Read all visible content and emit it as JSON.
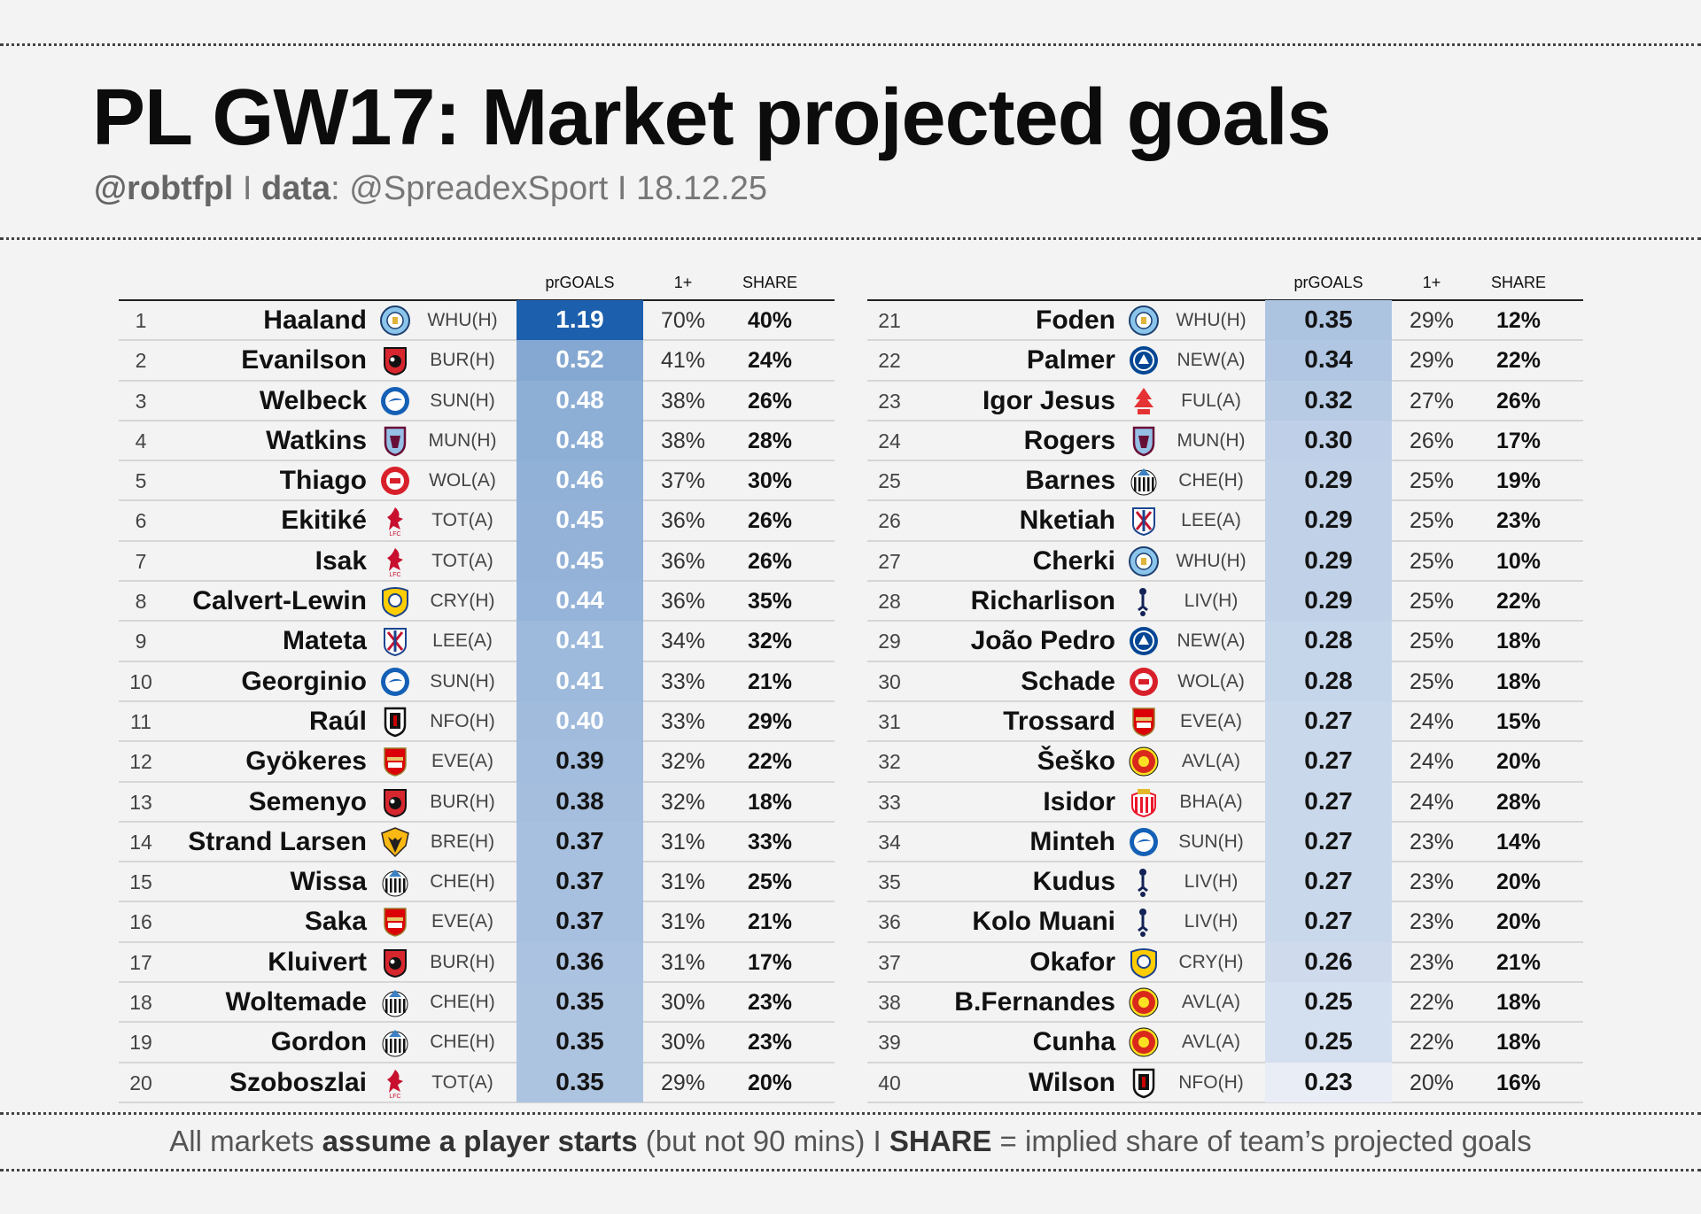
{
  "header": {
    "title": "PL GW17: Market projected goals",
    "handle": "@robtfpl",
    "sep1": " I ",
    "data_label": "data",
    "data_source": ": @SpreadexSport",
    "sep2": " I ",
    "date": "18.12.25"
  },
  "footer": {
    "part1": "All markets ",
    "bold1": "assume a player starts",
    "part2": " (but not 90 mins)  I  ",
    "bold2": "SHARE",
    "part3": " = implied share of team’s projected goals"
  },
  "colors": {
    "background": "#f3f3f3",
    "pr_max": "#1c5fad",
    "pr_min": "#e8edf6"
  },
  "chart_data": {
    "type": "table",
    "columns": [
      "",
      "",
      "",
      "",
      "prGOALS",
      "1+",
      "SHARE"
    ],
    "pr_scale": [
      0.23,
      1.19
    ],
    "rows": [
      {
        "rank": "1",
        "player": "Haaland",
        "team_icon": "man-city-badge-icon",
        "fixture": "WHU(H)",
        "prGOALS": "1.19",
        "one_plus": "70%",
        "share": "40%"
      },
      {
        "rank": "2",
        "player": "Evanilson",
        "team_icon": "bournemouth-badge-icon",
        "fixture": "BUR(H)",
        "prGOALS": "0.52",
        "one_plus": "41%",
        "share": "24%"
      },
      {
        "rank": "3",
        "player": "Welbeck",
        "team_icon": "brighton-badge-icon",
        "fixture": "SUN(H)",
        "prGOALS": "0.48",
        "one_plus": "38%",
        "share": "26%"
      },
      {
        "rank": "4",
        "player": "Watkins",
        "team_icon": "aston-villa-badge-icon",
        "fixture": "MUN(H)",
        "prGOALS": "0.48",
        "one_plus": "38%",
        "share": "28%"
      },
      {
        "rank": "5",
        "player": "Thiago",
        "team_icon": "brentford-badge-icon",
        "fixture": "WOL(A)",
        "prGOALS": "0.46",
        "one_plus": "37%",
        "share": "30%"
      },
      {
        "rank": "6",
        "player": "Ekitiké",
        "team_icon": "liverpool-badge-icon",
        "fixture": "TOT(A)",
        "prGOALS": "0.45",
        "one_plus": "36%",
        "share": "26%"
      },
      {
        "rank": "7",
        "player": "Isak",
        "team_icon": "liverpool-badge-icon",
        "fixture": "TOT(A)",
        "prGOALS": "0.45",
        "one_plus": "36%",
        "share": "26%"
      },
      {
        "rank": "8",
        "player": "Calvert-Lewin",
        "team_icon": "leeds-badge-icon",
        "fixture": "CRY(H)",
        "prGOALS": "0.44",
        "one_plus": "36%",
        "share": "35%"
      },
      {
        "rank": "9",
        "player": "Mateta",
        "team_icon": "crystal-palace-badge-icon",
        "fixture": "LEE(A)",
        "prGOALS": "0.41",
        "one_plus": "34%",
        "share": "32%"
      },
      {
        "rank": "10",
        "player": "Georginio",
        "team_icon": "brighton-badge-icon",
        "fixture": "SUN(H)",
        "prGOALS": "0.41",
        "one_plus": "33%",
        "share": "21%"
      },
      {
        "rank": "11",
        "player": "Raúl",
        "team_icon": "fulham-badge-icon",
        "fixture": "NFO(H)",
        "prGOALS": "0.40",
        "one_plus": "33%",
        "share": "29%"
      },
      {
        "rank": "12",
        "player": "Gyökeres",
        "team_icon": "arsenal-badge-icon",
        "fixture": "EVE(A)",
        "prGOALS": "0.39",
        "one_plus": "32%",
        "share": "22%"
      },
      {
        "rank": "13",
        "player": "Semenyo",
        "team_icon": "bournemouth-badge-icon",
        "fixture": "BUR(H)",
        "prGOALS": "0.38",
        "one_plus": "32%",
        "share": "18%"
      },
      {
        "rank": "14",
        "player": "Strand Larsen",
        "team_icon": "wolves-badge-icon",
        "fixture": "BRE(H)",
        "prGOALS": "0.37",
        "one_plus": "31%",
        "share": "33%"
      },
      {
        "rank": "15",
        "player": "Wissa",
        "team_icon": "newcastle-badge-icon",
        "fixture": "CHE(H)",
        "prGOALS": "0.37",
        "one_plus": "31%",
        "share": "25%"
      },
      {
        "rank": "16",
        "player": "Saka",
        "team_icon": "arsenal-badge-icon",
        "fixture": "EVE(A)",
        "prGOALS": "0.37",
        "one_plus": "31%",
        "share": "21%"
      },
      {
        "rank": "17",
        "player": "Kluivert",
        "team_icon": "bournemouth-badge-icon",
        "fixture": "BUR(H)",
        "prGOALS": "0.36",
        "one_plus": "31%",
        "share": "17%"
      },
      {
        "rank": "18",
        "player": "Woltemade",
        "team_icon": "newcastle-badge-icon",
        "fixture": "CHE(H)",
        "prGOALS": "0.35",
        "one_plus": "30%",
        "share": "23%"
      },
      {
        "rank": "19",
        "player": "Gordon",
        "team_icon": "newcastle-badge-icon",
        "fixture": "CHE(H)",
        "prGOALS": "0.35",
        "one_plus": "30%",
        "share": "23%"
      },
      {
        "rank": "20",
        "player": "Szoboszlai",
        "team_icon": "liverpool-badge-icon",
        "fixture": "TOT(A)",
        "prGOALS": "0.35",
        "one_plus": "29%",
        "share": "20%"
      },
      {
        "rank": "21",
        "player": "Foden",
        "team_icon": "man-city-badge-icon",
        "fixture": "WHU(H)",
        "prGOALS": "0.35",
        "one_plus": "29%",
        "share": "12%"
      },
      {
        "rank": "22",
        "player": "Palmer",
        "team_icon": "chelsea-badge-icon",
        "fixture": "NEW(A)",
        "prGOALS": "0.34",
        "one_plus": "29%",
        "share": "22%"
      },
      {
        "rank": "23",
        "player": "Igor Jesus",
        "team_icon": "nottm-forest-badge-icon",
        "fixture": "FUL(A)",
        "prGOALS": "0.32",
        "one_plus": "27%",
        "share": "26%"
      },
      {
        "rank": "24",
        "player": "Rogers",
        "team_icon": "aston-villa-badge-icon",
        "fixture": "MUN(H)",
        "prGOALS": "0.30",
        "one_plus": "26%",
        "share": "17%"
      },
      {
        "rank": "25",
        "player": "Barnes",
        "team_icon": "newcastle-badge-icon",
        "fixture": "CHE(H)",
        "prGOALS": "0.29",
        "one_plus": "25%",
        "share": "19%"
      },
      {
        "rank": "26",
        "player": "Nketiah",
        "team_icon": "crystal-palace-badge-icon",
        "fixture": "LEE(A)",
        "prGOALS": "0.29",
        "one_plus": "25%",
        "share": "23%"
      },
      {
        "rank": "27",
        "player": "Cherki",
        "team_icon": "man-city-badge-icon",
        "fixture": "WHU(H)",
        "prGOALS": "0.29",
        "one_plus": "25%",
        "share": "10%"
      },
      {
        "rank": "28",
        "player": "Richarlison",
        "team_icon": "tottenham-badge-icon",
        "fixture": "LIV(H)",
        "prGOALS": "0.29",
        "one_plus": "25%",
        "share": "22%"
      },
      {
        "rank": "29",
        "player": "João Pedro",
        "team_icon": "chelsea-badge-icon",
        "fixture": "NEW(A)",
        "prGOALS": "0.28",
        "one_plus": "25%",
        "share": "18%"
      },
      {
        "rank": "30",
        "player": "Schade",
        "team_icon": "brentford-badge-icon",
        "fixture": "WOL(A)",
        "prGOALS": "0.28",
        "one_plus": "25%",
        "share": "18%"
      },
      {
        "rank": "31",
        "player": "Trossard",
        "team_icon": "arsenal-badge-icon",
        "fixture": "EVE(A)",
        "prGOALS": "0.27",
        "one_plus": "24%",
        "share": "15%"
      },
      {
        "rank": "32",
        "player": "Šeško",
        "team_icon": "man-utd-badge-icon",
        "fixture": "AVL(A)",
        "prGOALS": "0.27",
        "one_plus": "24%",
        "share": "20%"
      },
      {
        "rank": "33",
        "player": "Isidor",
        "team_icon": "sunderland-badge-icon",
        "fixture": "BHA(A)",
        "prGOALS": "0.27",
        "one_plus": "24%",
        "share": "28%"
      },
      {
        "rank": "34",
        "player": "Minteh",
        "team_icon": "brighton-badge-icon",
        "fixture": "SUN(H)",
        "prGOALS": "0.27",
        "one_plus": "23%",
        "share": "14%"
      },
      {
        "rank": "35",
        "player": "Kudus",
        "team_icon": "tottenham-badge-icon",
        "fixture": "LIV(H)",
        "prGOALS": "0.27",
        "one_plus": "23%",
        "share": "20%"
      },
      {
        "rank": "36",
        "player": "Kolo Muani",
        "team_icon": "tottenham-badge-icon",
        "fixture": "LIV(H)",
        "prGOALS": "0.27",
        "one_plus": "23%",
        "share": "20%"
      },
      {
        "rank": "37",
        "player": "Okafor",
        "team_icon": "leeds-badge-icon",
        "fixture": "CRY(H)",
        "prGOALS": "0.26",
        "one_plus": "23%",
        "share": "21%"
      },
      {
        "rank": "38",
        "player": "B.Fernandes",
        "team_icon": "man-utd-badge-icon",
        "fixture": "AVL(A)",
        "prGOALS": "0.25",
        "one_plus": "22%",
        "share": "18%"
      },
      {
        "rank": "39",
        "player": "Cunha",
        "team_icon": "man-utd-badge-icon",
        "fixture": "AVL(A)",
        "prGOALS": "0.25",
        "one_plus": "22%",
        "share": "18%"
      },
      {
        "rank": "40",
        "player": "Wilson",
        "team_icon": "fulham-badge-icon",
        "fixture": "NFO(H)",
        "prGOALS": "0.23",
        "one_plus": "20%",
        "share": "16%"
      }
    ]
  }
}
